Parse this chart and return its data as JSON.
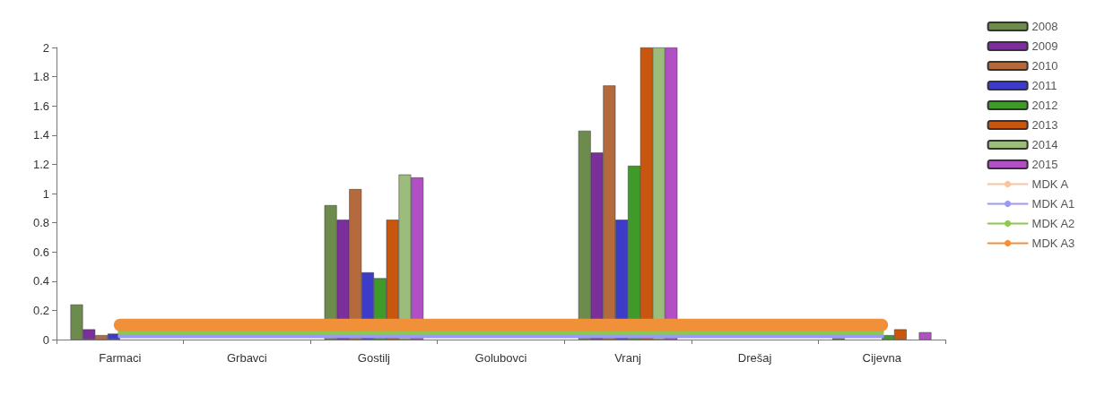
{
  "chart_data": {
    "type": "bar",
    "categories": [
      "Farmaci",
      "Grbavci",
      "Gostilj",
      "Golubovci",
      "Vranj",
      "Drešaj",
      "Cijevna"
    ],
    "ylim": [
      0,
      2
    ],
    "yticks": [
      0,
      0.2,
      0.4,
      0.6,
      0.8,
      1,
      1.2,
      1.4,
      1.6,
      1.8,
      2
    ],
    "grid": false,
    "legend": "right",
    "series": [
      {
        "name": "2008",
        "color": "#6e8b4e",
        "values": [
          0.24,
          null,
          0.92,
          null,
          1.43,
          null,
          0.01
        ]
      },
      {
        "name": "2009",
        "color": "#7a2f9a",
        "values": [
          0.07,
          null,
          0.82,
          null,
          1.28,
          null,
          null
        ]
      },
      {
        "name": "2010",
        "color": "#b46a3c",
        "values": [
          0.03,
          null,
          1.03,
          null,
          1.74,
          null,
          null
        ]
      },
      {
        "name": "2011",
        "color": "#3c3cc8",
        "values": [
          0.04,
          null,
          0.46,
          null,
          0.82,
          null,
          null
        ]
      },
      {
        "name": "2012",
        "color": "#3f9a2a",
        "values": [
          null,
          null,
          0.42,
          null,
          1.19,
          null,
          0.03
        ]
      },
      {
        "name": "2013",
        "color": "#c8560e",
        "values": [
          null,
          null,
          0.82,
          null,
          2,
          null,
          0.07
        ]
      },
      {
        "name": "2014",
        "color": "#9cbc7c",
        "values": [
          null,
          null,
          1.13,
          null,
          2,
          null,
          null
        ]
      },
      {
        "name": "2015",
        "color": "#b14fc4",
        "values": [
          null,
          null,
          1.11,
          null,
          2,
          null,
          0.05
        ]
      },
      {
        "name": "MDK A",
        "type": "line",
        "color": "#f8c4a0",
        "values": [
          null,
          null,
          null,
          null,
          null,
          null,
          null
        ]
      },
      {
        "name": "MDK A1",
        "type": "line",
        "color": "#9a9af0",
        "values": [
          0.025,
          0.025,
          0.025,
          0.025,
          0.025,
          0.025,
          0.025
        ]
      },
      {
        "name": "MDK A2",
        "type": "line",
        "color": "#8ec850",
        "values": [
          0.05,
          0.05,
          0.05,
          0.05,
          0.05,
          0.05,
          0.05
        ]
      },
      {
        "name": "MDK A3",
        "type": "line",
        "color": "#f0913a",
        "values": [
          0.1,
          0.1,
          0.1,
          0.1,
          0.1,
          0.1,
          0.1
        ]
      }
    ]
  }
}
